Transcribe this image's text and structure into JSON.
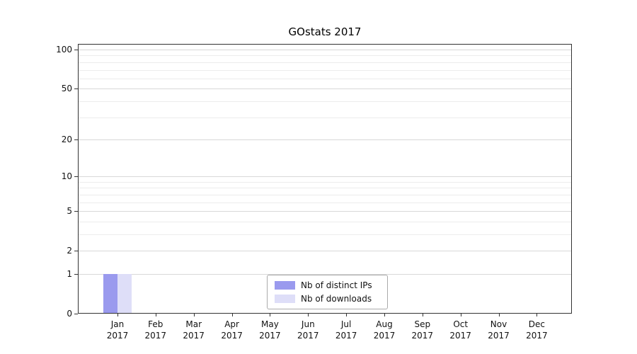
{
  "title": "GOstats 2017",
  "chart_data": {
    "type": "bar",
    "title": "GOstats 2017",
    "yscale": "log1p",
    "ylim": [
      0,
      100
    ],
    "y_ticks": [
      0,
      1,
      2,
      5,
      10,
      20,
      50,
      100
    ],
    "y_minor_gridlines": [
      1,
      2,
      3,
      4,
      5,
      6,
      7,
      8,
      9,
      10,
      20,
      30,
      40,
      50,
      60,
      70,
      80,
      90,
      100
    ],
    "categories": [
      {
        "month": "Jan",
        "year": "2017"
      },
      {
        "month": "Feb",
        "year": "2017"
      },
      {
        "month": "Mar",
        "year": "2017"
      },
      {
        "month": "Apr",
        "year": "2017"
      },
      {
        "month": "May",
        "year": "2017"
      },
      {
        "month": "Jun",
        "year": "2017"
      },
      {
        "month": "Jul",
        "year": "2017"
      },
      {
        "month": "Aug",
        "year": "2017"
      },
      {
        "month": "Sep",
        "year": "2017"
      },
      {
        "month": "Oct",
        "year": "2017"
      },
      {
        "month": "Nov",
        "year": "2017"
      },
      {
        "month": "Dec",
        "year": "2017"
      }
    ],
    "series": [
      {
        "name": "Nb of distinct IPs",
        "color": "#9a9aee",
        "values": [
          1,
          0,
          0,
          0,
          0,
          0,
          0,
          0,
          0,
          0,
          0,
          0
        ]
      },
      {
        "name": "Nb of downloads",
        "color": "#dedef8",
        "values": [
          1,
          0,
          0,
          0,
          0,
          0,
          0,
          0,
          0,
          0,
          0,
          0
        ]
      }
    ],
    "legend": {
      "position": "bottom-center",
      "entries": [
        "Nb of distinct IPs",
        "Nb of downloads"
      ]
    },
    "grid": true
  },
  "colors": {
    "background": "#ffffff",
    "axis": "#333333",
    "grid_minor": "#ececec",
    "grid_major": "#d8d8d8",
    "legend_border": "#aaaaaa",
    "text": "#111111"
  }
}
